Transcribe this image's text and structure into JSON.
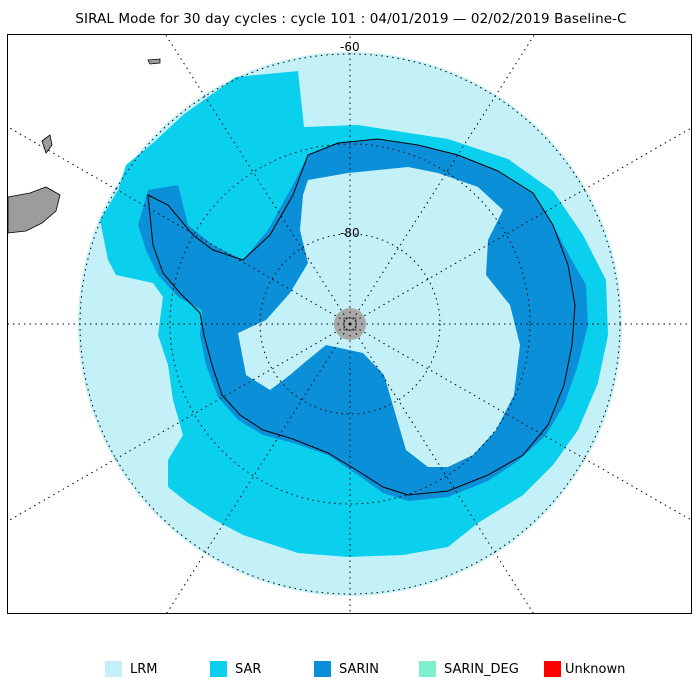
{
  "title": "SIRAL Mode for 30 day cycles : cycle 101 : 04/01/2019 — 02/02/2019 Baseline-C",
  "map": {
    "lat_labels": [
      "-60",
      "-80"
    ],
    "colors": {
      "lrm": "#c4f1f8",
      "sar": "#0ad0ee",
      "sarin": "#0a8fd8",
      "sarin_deg": "#7ff0cf",
      "unknown": "#ff0000",
      "land": "#9c9c9c",
      "pole_hole": "#a8a8a8"
    }
  },
  "legend": [
    {
      "key": "lrm",
      "label": "LRM",
      "color": "#c4f1f8"
    },
    {
      "key": "sar",
      "label": "SAR",
      "color": "#0ad0ee"
    },
    {
      "key": "sarin",
      "label": "SARIN",
      "color": "#0a8fd8"
    },
    {
      "key": "sarin_deg",
      "label": "SARIN_DEG",
      "color": "#7ff0cf"
    },
    {
      "key": "unknown",
      "label": "Unknown",
      "color": "#ff0000"
    }
  ]
}
